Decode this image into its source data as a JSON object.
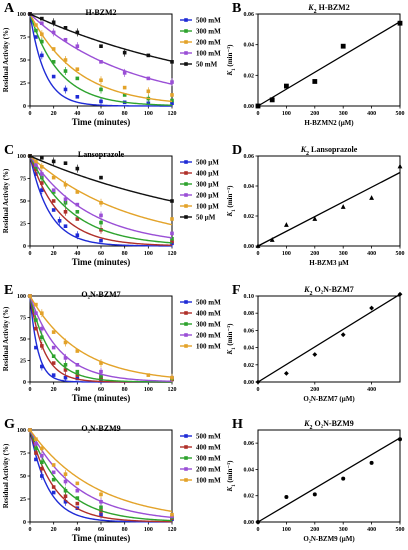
{
  "figure": {
    "colors": {
      "blue": "#1f2bd6",
      "green": "#2ea32e",
      "purple": "#9a4fd6",
      "orange": "#e3a32a",
      "red": "#b0302a",
      "black": "#111111"
    }
  },
  "chart_data": [
    {
      "panel": "A",
      "type": "scatter",
      "title": "H-BZM2",
      "xlabel": "Time (minutes)",
      "ylabel": "Residual Activity (%)",
      "xlim": [
        0,
        120
      ],
      "ylim": [
        0,
        100
      ],
      "xticks": [
        0,
        20,
        40,
        60,
        80,
        100,
        120
      ],
      "yticks": [
        0,
        25,
        50,
        75,
        100
      ],
      "legend_position": "right",
      "fit_curves": true,
      "series": [
        {
          "name": "500 mM",
          "color": "#1f2bd6",
          "x": [
            0,
            5,
            10,
            20,
            30,
            40,
            60,
            80,
            100,
            120
          ],
          "y": [
            100,
            75,
            55,
            32,
            18,
            10,
            5,
            4,
            3,
            3
          ],
          "k": 0.08
        },
        {
          "name": "300 mM",
          "color": "#2ea32e",
          "x": [
            0,
            5,
            10,
            20,
            30,
            40,
            60,
            80,
            100,
            120
          ],
          "y": [
            100,
            82,
            70,
            48,
            38,
            30,
            18,
            12,
            8,
            6
          ],
          "k": 0.04
        },
        {
          "name": "200 mM",
          "color": "#e3a32a",
          "x": [
            0,
            5,
            10,
            20,
            30,
            40,
            60,
            80,
            100,
            120
          ],
          "y": [
            100,
            88,
            78,
            62,
            50,
            40,
            28,
            20,
            16,
            12
          ],
          "k": 0.025
        },
        {
          "name": "100 mM",
          "color": "#9a4fd6",
          "x": [
            0,
            10,
            20,
            30,
            40,
            60,
            80,
            100,
            120
          ],
          "y": [
            100,
            90,
            80,
            72,
            65,
            48,
            36,
            30,
            26
          ],
          "k": 0.012
        },
        {
          "name": "50 mM",
          "color": "#111111",
          "x": [
            0,
            10,
            20,
            30,
            40,
            60,
            80,
            100,
            120
          ],
          "y": [
            100,
            95,
            91,
            85,
            80,
            65,
            58,
            55,
            48
          ],
          "k": 0.006
        }
      ]
    },
    {
      "panel": "B",
      "type": "scatter",
      "title_italic": "K",
      "title_sub": "2",
      "title_rest": " H-BZM2",
      "xlabel": "H-BZMN2 (μM)",
      "ylabel_italic": "K",
      "ylabel_sub": "1",
      "ylabel_rest": " (min⁻¹)",
      "xlim": [
        0,
        500
      ],
      "ylim": [
        0,
        0.06
      ],
      "xticks": [
        0,
        100,
        200,
        300,
        400,
        500
      ],
      "yticks": [
        0,
        0.02,
        0.04,
        0.06
      ],
      "ytick_labels": [
        "0.00",
        "0.02",
        "0.04",
        "0.06"
      ],
      "marker": "square",
      "x": [
        0,
        50,
        100,
        200,
        300,
        500
      ],
      "y": [
        0.0,
        0.004,
        0.013,
        0.016,
        0.039,
        0.054
      ],
      "fit": [
        [
          0,
          0.0
        ],
        [
          500,
          0.055
        ]
      ]
    },
    {
      "panel": "C",
      "type": "scatter",
      "title": "Lansoprazole",
      "xlabel": "Time (minutes)",
      "ylabel": "Residual Activity (%)",
      "xlim": [
        0,
        120
      ],
      "ylim": [
        0,
        100
      ],
      "xticks": [
        0,
        20,
        40,
        60,
        80,
        100,
        120
      ],
      "yticks": [
        0,
        25,
        50,
        75,
        100
      ],
      "legend_position": "right",
      "fit_curves": true,
      "series": [
        {
          "name": "500 μM",
          "color": "#1f2bd6",
          "x": [
            0,
            5,
            10,
            20,
            25,
            30,
            40,
            60,
            120
          ],
          "y": [
            100,
            80,
            62,
            40,
            28,
            22,
            12,
            6,
            3
          ],
          "k": 0.06
        },
        {
          "name": "400 μM",
          "color": "#b0302a",
          "x": [
            0,
            5,
            10,
            20,
            30,
            40,
            60,
            120
          ],
          "y": [
            100,
            85,
            70,
            50,
            38,
            30,
            18,
            5
          ],
          "k": 0.04
        },
        {
          "name": "300 μM",
          "color": "#2ea32e",
          "x": [
            0,
            5,
            10,
            20,
            30,
            40,
            60,
            120
          ],
          "y": [
            100,
            88,
            76,
            60,
            48,
            38,
            26,
            8
          ],
          "k": 0.028
        },
        {
          "name": "200 μM",
          "color": "#9a4fd6",
          "x": [
            0,
            5,
            10,
            20,
            30,
            40,
            60,
            120
          ],
          "y": [
            100,
            90,
            80,
            62,
            52,
            46,
            34,
            14
          ],
          "k": 0.02
        },
        {
          "name": "100 μM",
          "color": "#e3a32a",
          "x": [
            0,
            5,
            10,
            20,
            30,
            40,
            60,
            120
          ],
          "y": [
            100,
            94,
            88,
            76,
            68,
            60,
            48,
            30
          ],
          "k": 0.012
        },
        {
          "name": "50 μM",
          "color": "#111111",
          "x": [
            0,
            10,
            20,
            30,
            40,
            60,
            120
          ],
          "y": [
            100,
            98,
            94,
            92,
            86,
            76,
            50
          ],
          "k": 0.0058
        }
      ]
    },
    {
      "panel": "D",
      "type": "scatter",
      "title_italic": "K",
      "title_sub": "2",
      "title_rest": " Lansoprazole",
      "xlabel": "H-BZM3 μM",
      "ylabel_italic": "K",
      "ylabel_sub": "1",
      "ylabel_rest": " (min⁻¹)",
      "xlim": [
        0,
        500
      ],
      "ylim": [
        0,
        0.06
      ],
      "xticks": [
        0,
        100,
        200,
        300,
        400,
        500
      ],
      "yticks": [
        0,
        0.02,
        0.04,
        0.06
      ],
      "ytick_labels": [
        "0.00",
        "0.02",
        "0.04",
        "0.06"
      ],
      "marker": "triangle",
      "x": [
        0,
        50,
        100,
        200,
        300,
        400,
        500
      ],
      "y": [
        0.0,
        0.004,
        0.014,
        0.018,
        0.026,
        0.032,
        0.053
      ],
      "fit": [
        [
          0,
          0.0
        ],
        [
          500,
          0.049
        ]
      ]
    },
    {
      "panel": "E",
      "type": "scatter",
      "title": "O₂N-BZM7",
      "xlabel": "Time (minutes)",
      "ylabel": "Residual Activity (%)",
      "xlim": [
        0,
        120
      ],
      "ylim": [
        0,
        100
      ],
      "xticks": [
        0,
        20,
        40,
        60,
        80,
        100,
        120
      ],
      "yticks": [
        0,
        25,
        50,
        75,
        100
      ],
      "legend_position": "right",
      "fit_curves": true,
      "series": [
        {
          "name": "500 mM",
          "color": "#1f2bd6",
          "x": [
            0,
            5,
            10,
            20,
            30,
            40,
            60,
            120
          ],
          "y": [
            100,
            40,
            18,
            8,
            5,
            4,
            3,
            3
          ],
          "k": 0.15
        },
        {
          "name": "400 mM",
          "color": "#b0302a",
          "x": [
            0,
            5,
            10,
            20,
            30,
            40,
            60,
            120
          ],
          "y": [
            100,
            62,
            42,
            22,
            14,
            8,
            5,
            3
          ],
          "k": 0.085
        },
        {
          "name": "300 mM",
          "color": "#2ea32e",
          "x": [
            0,
            5,
            10,
            20,
            30,
            40,
            60,
            120
          ],
          "y": [
            100,
            72,
            52,
            30,
            20,
            12,
            7,
            4
          ],
          "k": 0.06
        },
        {
          "name": "200 mM",
          "color": "#9a4fd6",
          "x": [
            0,
            5,
            10,
            20,
            30,
            40,
            60,
            120
          ],
          "y": [
            100,
            80,
            62,
            40,
            28,
            20,
            12,
            5
          ],
          "k": 0.04
        },
        {
          "name": "100 mM",
          "color": "#e3a32a",
          "x": [
            0,
            5,
            10,
            20,
            30,
            40,
            60,
            100,
            120
          ],
          "y": [
            100,
            90,
            80,
            58,
            46,
            36,
            22,
            8,
            5
          ],
          "k": 0.024
        }
      ]
    },
    {
      "panel": "F",
      "type": "scatter",
      "title_italic": "K",
      "title_sub": "2",
      "title_rest": " O₂N-BZM7",
      "xlabel": "O₂N-BZM7 (μM)",
      "ylabel_italic": "K",
      "ylabel_sub": "1",
      "ylabel_rest": " (min⁻¹)",
      "xlim": [
        0,
        500
      ],
      "ylim": [
        0,
        0.1
      ],
      "xticks": [
        0,
        200,
        400
      ],
      "yticks": [
        0,
        0.02,
        0.04,
        0.06,
        0.08,
        0.1
      ],
      "ytick_labels": [
        "0.00",
        "0.02",
        "0.04",
        "0.06",
        "0.08",
        "0.10"
      ],
      "marker": "diamond",
      "x": [
        0,
        100,
        200,
        300,
        400,
        500
      ],
      "y": [
        0.0,
        0.01,
        0.032,
        0.055,
        0.086,
        0.102
      ],
      "fit": [
        [
          0,
          0.0
        ],
        [
          500,
          0.102
        ]
      ]
    },
    {
      "panel": "G",
      "type": "scatter",
      "title": "O₂N-BZM9",
      "xlabel": "Time (minutes)",
      "ylabel": "Residual Activity (%)",
      "xlim": [
        0,
        120
      ],
      "ylim": [
        0,
        100
      ],
      "xticks": [
        0,
        20,
        40,
        60,
        80,
        100,
        120
      ],
      "yticks": [
        0,
        25,
        50,
        75,
        100
      ],
      "legend_position": "right",
      "fit_curves": true,
      "series": [
        {
          "name": "500 mM",
          "color": "#1f2bd6",
          "x": [
            0,
            5,
            10,
            20,
            30,
            40,
            60,
            120
          ],
          "y": [
            100,
            68,
            50,
            32,
            22,
            15,
            8,
            3
          ],
          "k": 0.065
        },
        {
          "name": "400 mM",
          "color": "#b0302a",
          "x": [
            0,
            5,
            10,
            20,
            30,
            40,
            60,
            120
          ],
          "y": [
            100,
            75,
            58,
            38,
            28,
            20,
            12,
            4
          ],
          "k": 0.048
        },
        {
          "name": "300 mM",
          "color": "#2ea32e",
          "x": [
            0,
            5,
            10,
            20,
            30,
            40,
            60,
            120
          ],
          "y": [
            100,
            80,
            65,
            46,
            34,
            26,
            16,
            5
          ],
          "k": 0.035
        },
        {
          "name": "200 mM",
          "color": "#9a4fd6",
          "x": [
            0,
            5,
            10,
            20,
            30,
            40,
            60,
            120
          ],
          "y": [
            100,
            85,
            72,
            54,
            44,
            34,
            22,
            6
          ],
          "k": 0.025
        },
        {
          "name": "100 mM",
          "color": "#e3a32a",
          "x": [
            0,
            5,
            10,
            20,
            30,
            40,
            60,
            120
          ],
          "y": [
            100,
            90,
            80,
            62,
            52,
            42,
            30,
            8
          ],
          "k": 0.018
        }
      ]
    },
    {
      "panel": "H",
      "type": "scatter",
      "title_italic": "K",
      "title_sub": "2",
      "title_rest": " O₂N-BZM9",
      "xlabel": "O₂N-BZM9 (μM)",
      "ylabel_italic": "K",
      "ylabel_sub": "1",
      "ylabel_rest": " (min⁻¹)",
      "xlim": [
        0,
        500
      ],
      "ylim": [
        0,
        0.07
      ],
      "xticks": [
        0,
        100,
        200,
        300,
        400,
        500
      ],
      "yticks": [
        0,
        0.02,
        0.04,
        0.06
      ],
      "ytick_labels": [
        "0.00",
        "0.02",
        "0.04",
        "0.06"
      ],
      "marker": "circle",
      "x": [
        0,
        100,
        200,
        300,
        400,
        500
      ],
      "y": [
        0.0,
        0.019,
        0.021,
        0.033,
        0.045,
        0.063
      ],
      "fit": [
        [
          0,
          0.0
        ],
        [
          500,
          0.064
        ]
      ]
    }
  ]
}
